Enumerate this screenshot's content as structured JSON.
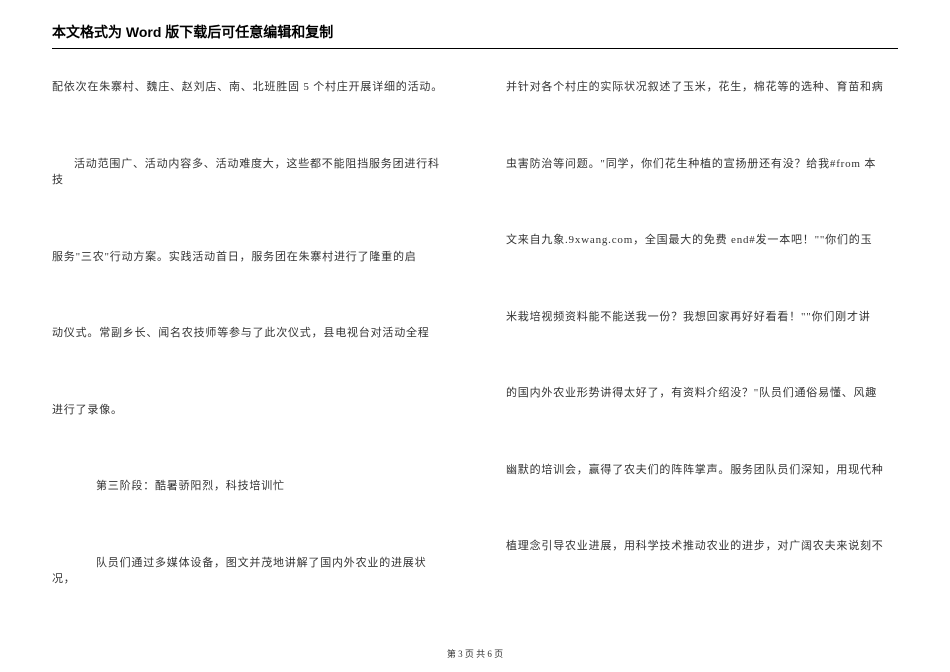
{
  "header": {
    "title": "本文格式为 Word 版下载后可任意编辑和复制"
  },
  "leftColumn": {
    "lines": [
      {
        "text": "配依次在朱寨村、魏庄、赵刘店、南、北班胜固 5 个村庄开展详细的活动。",
        "indent": "continue"
      },
      {
        "text": "活动范围广、活动内容多、活动难度大，这些都不能阻挡服务团进行科技",
        "indent": "indent"
      },
      {
        "text": "服务\"三农\"行动方案。实践活动首日，服务团在朱寨村进行了隆重的启",
        "indent": "continue"
      },
      {
        "text": "动仪式。常副乡长、闻名农技师等参与了此次仪式，县电视台对活动全程",
        "indent": "continue"
      },
      {
        "text": "进行了录像。",
        "indent": "continue"
      },
      {
        "text": "第三阶段：酷暑骄阳烈，科技培训忙",
        "indent": "extra-indent"
      },
      {
        "text": "队员们通过多媒体设备，图文并茂地讲解了国内外农业的进展状况，",
        "indent": "extra-indent"
      }
    ]
  },
  "rightColumn": {
    "lines": [
      {
        "text": "并针对各个村庄的实际状况叙述了玉米，花生，棉花等的选种、育苗和病",
        "indent": "continue"
      },
      {
        "text": "虫害防治等问题。\"同学，你们花生种植的宣扬册还有没？给我#from 本",
        "indent": "continue"
      },
      {
        "text": "文来自九象.9xwang.com，全国最大的免费 end#发一本吧！\"\"你们的玉",
        "indent": "continue"
      },
      {
        "text": "米栽培视频资料能不能送我一份？我想回家再好好看看！\"\"你们刚才讲",
        "indent": "continue"
      },
      {
        "text": "的国内外农业形势讲得太好了，有资料介绍没？\"队员们通俗易懂、风趣",
        "indent": "continue"
      },
      {
        "text": "幽默的培训会，赢得了农夫们的阵阵掌声。服务团队员们深知，用现代种",
        "indent": "continue"
      },
      {
        "text": "植理念引导农业进展，用科学技术推动农业的进步，对广阔农夫来说刻不",
        "indent": "continue"
      }
    ]
  },
  "footer": {
    "text": "第 3 页 共 6 页"
  }
}
